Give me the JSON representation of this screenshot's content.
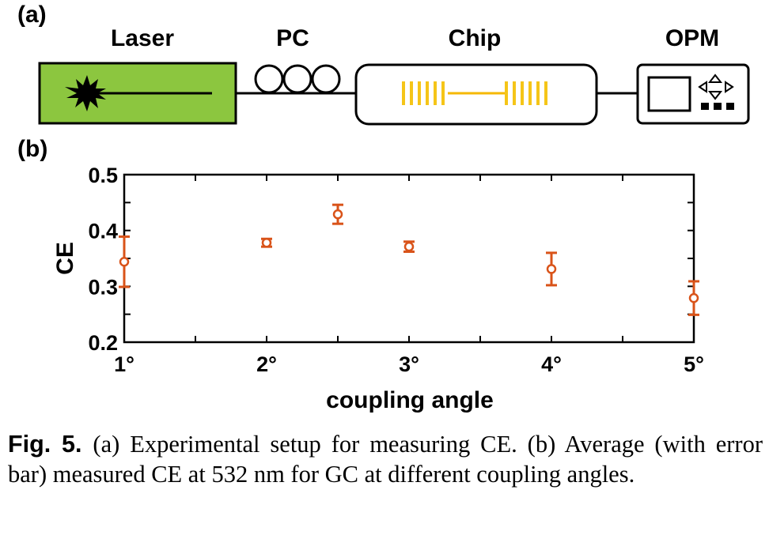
{
  "panel_a": {
    "label": "(a)",
    "devices": {
      "laser": "Laser",
      "pc": "PC",
      "chip": "Chip",
      "opm": "OPM"
    },
    "colors": {
      "laser_fill": "#8cc63f",
      "grating": "#f5c518",
      "waveguide": "#f5b800"
    }
  },
  "panel_b": {
    "label": "(b)"
  },
  "chart_data": {
    "type": "scatter",
    "x_tick_labels": [
      "1°",
      "2°",
      "3°",
      "4°",
      "5°"
    ],
    "x_ticks": [
      1,
      2,
      3,
      4,
      5
    ],
    "xlim": [
      1,
      5
    ],
    "ylim": [
      0.2,
      0.5
    ],
    "y_ticks": [
      0.2,
      0.3,
      0.4,
      0.5
    ],
    "y_tick_labels": [
      "0.2",
      "0.3",
      "0.4",
      "0.5"
    ],
    "xlabel": "coupling angle",
    "ylabel": "CE",
    "grid": false,
    "color": "#d95319",
    "points": [
      {
        "x": 1.0,
        "y": 0.344,
        "err": 0.045
      },
      {
        "x": 2.0,
        "y": 0.378,
        "err": 0.007
      },
      {
        "x": 2.5,
        "y": 0.429,
        "err": 0.017
      },
      {
        "x": 3.0,
        "y": 0.371,
        "err": 0.009
      },
      {
        "x": 4.0,
        "y": 0.331,
        "err": 0.029
      },
      {
        "x": 5.0,
        "y": 0.279,
        "err": 0.03
      }
    ]
  },
  "caption": {
    "fig_label": "Fig. 5.",
    "text": "(a) Experimental setup for measuring CE. (b) Average (with error bar) measured CE at 532 nm for GC at different coupling angles."
  }
}
